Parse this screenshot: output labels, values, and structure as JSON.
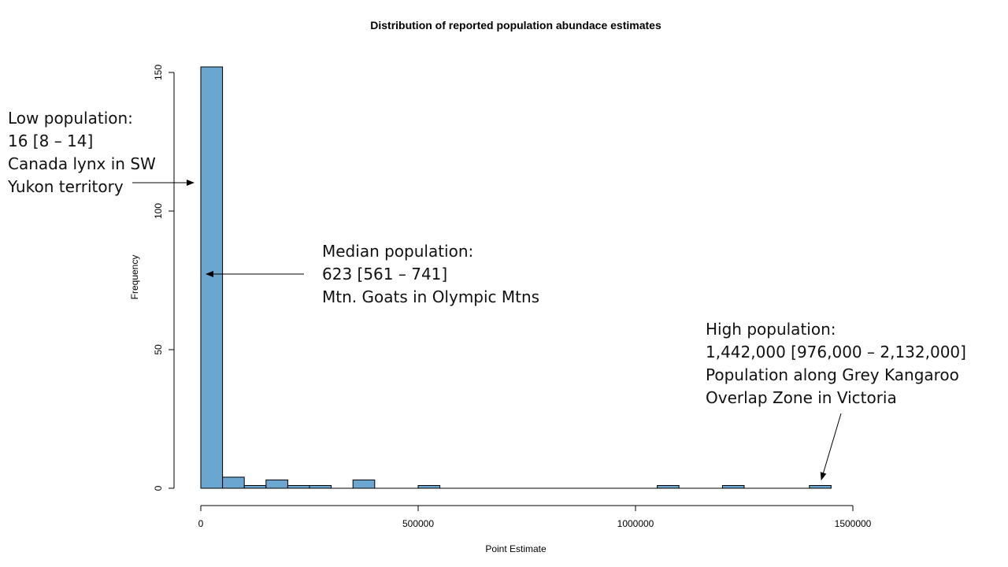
{
  "chart_data": {
    "type": "bar",
    "title": "Distribution of reported population abundace estimates",
    "xlabel": "Point Estimate",
    "ylabel": "Frequency",
    "bin_width": 50000,
    "bins": [
      {
        "start": 0,
        "end": 50000,
        "count": 152
      },
      {
        "start": 50000,
        "end": 100000,
        "count": 4
      },
      {
        "start": 100000,
        "end": 150000,
        "count": 1
      },
      {
        "start": 150000,
        "end": 200000,
        "count": 3
      },
      {
        "start": 200000,
        "end": 250000,
        "count": 1
      },
      {
        "start": 250000,
        "end": 300000,
        "count": 1
      },
      {
        "start": 300000,
        "end": 350000,
        "count": 0
      },
      {
        "start": 350000,
        "end": 400000,
        "count": 3
      },
      {
        "start": 400000,
        "end": 450000,
        "count": 0
      },
      {
        "start": 450000,
        "end": 500000,
        "count": 0
      },
      {
        "start": 500000,
        "end": 550000,
        "count": 1
      },
      {
        "start": 1050000,
        "end": 1100000,
        "count": 1
      },
      {
        "start": 1200000,
        "end": 1250000,
        "count": 1
      },
      {
        "start": 1400000,
        "end": 1450000,
        "count": 1
      }
    ],
    "xlim": [
      0,
      1500000
    ],
    "ylim": [
      0,
      152
    ],
    "x_ticks": [
      0,
      500000,
      1000000,
      1500000
    ],
    "x_tick_labels": [
      "0",
      "500000",
      "1000000",
      "1500000"
    ],
    "y_ticks": [
      0,
      50,
      100,
      150
    ],
    "y_tick_labels": [
      "0",
      "50",
      "100",
      "150"
    ],
    "bar_color": "#6aa6cf",
    "grid": false
  },
  "annotations": {
    "low": {
      "lines": [
        "Low population:",
        "16 [8 – 14]",
        "Canada lynx in SW",
        "Yukon territory"
      ]
    },
    "median": {
      "lines": [
        "Median population:",
        "623 [561 – 741]",
        "Mtn. Goats in Olympic Mtns"
      ]
    },
    "high": {
      "lines": [
        "High population:",
        "1,442,000 [976,000 – 2,132,000]",
        "Population along Grey Kangaroo",
        "Overlap Zone in Victoria"
      ]
    }
  }
}
